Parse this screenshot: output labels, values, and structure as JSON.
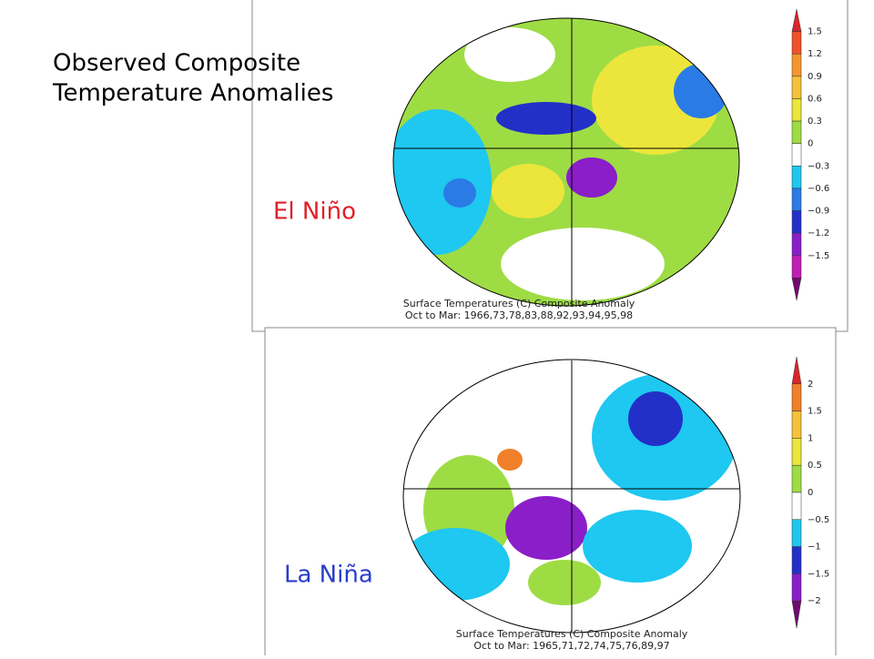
{
  "title": [
    "Observed Composite",
    "Temperature Anomalies"
  ],
  "panels": [
    {
      "label": "El Niño",
      "caption": [
        "Surface Temperatures (C)      Composite Anomaly",
        "Oct to Mar: 1966,73,78,83,88,92,93,94,95,98"
      ],
      "colorbar": {
        "ticks": [
          "1.5",
          "1.2",
          "0.9",
          "0.6",
          "0.3",
          "0",
          "−0.3",
          "−0.6",
          "−0.9",
          "−1.2",
          "−1.5"
        ],
        "colors": [
          "#d8262a",
          "#f0502a",
          "#f5962d",
          "#f6c23a",
          "#ece63c",
          "#9edc44",
          "#ffffff",
          "#1ec8f0",
          "#2a7be6",
          "#2230c8",
          "#8a1ec8",
          "#c01eb4",
          "#6e0a6e"
        ]
      }
    },
    {
      "label": "La Niña",
      "caption": [
        "Surface Temperatures (C)      Composite Anomaly",
        "Oct to Mar: 1965,71,72,74,75,76,89,97"
      ],
      "colorbar": {
        "ticks": [
          "2",
          "1.5",
          "1",
          "0.5",
          "0",
          "−0.5",
          "−1",
          "−1.5",
          "−2"
        ],
        "colors": [
          "#d8262a",
          "#f0802a",
          "#f6c23a",
          "#ece63c",
          "#9edc44",
          "#ffffff",
          "#1ec8f0",
          "#2230c8",
          "#8a1ec8",
          "#6e0a6e"
        ]
      }
    }
  ]
}
